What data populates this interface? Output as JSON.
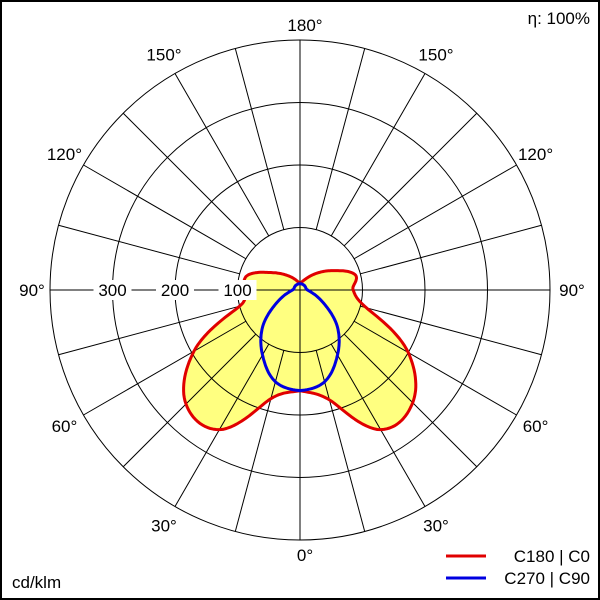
{
  "chart_data": {
    "type": "polar",
    "unit_label": "cd/klm",
    "efficiency_label": "η: 100%",
    "radial_ticks": [
      100,
      200,
      300
    ],
    "radial_max": 400,
    "angle_step_deg": 15,
    "angle_labels": [
      "0°",
      "30°",
      "60°",
      "90°",
      "120°",
      "150°",
      "180°"
    ],
    "angles": [
      0,
      15,
      30,
      45,
      60,
      75,
      90,
      105,
      120,
      135,
      150,
      165,
      180
    ],
    "fill_color": "#ffff80",
    "series": [
      {
        "name": "C180 | C0",
        "color": "#e00000",
        "left_values": [
          161,
          180,
          258,
          258,
          196,
          100,
          90,
          88,
          56,
          35,
          22,
          14,
          10
        ],
        "right_values": [
          161,
          182,
          258,
          255,
          200,
          110,
          85,
          92,
          62,
          38,
          22,
          14,
          10
        ]
      },
      {
        "name": "C270 | C90",
        "color": "#0000e0",
        "left_values": [
          161,
          152,
          120,
          85,
          45,
          22,
          12,
          10,
          10,
          10,
          10,
          10,
          10
        ],
        "right_values": [
          161,
          152,
          120,
          85,
          45,
          22,
          12,
          10,
          10,
          10,
          10,
          10,
          10
        ]
      }
    ]
  }
}
